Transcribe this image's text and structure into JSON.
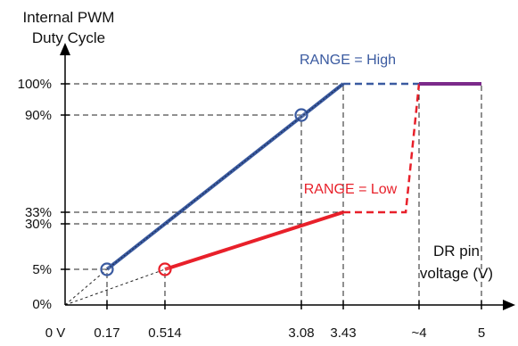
{
  "chart_data": {
    "type": "line",
    "ylabel_lines": [
      "Internal PWM",
      "Duty Cycle"
    ],
    "xlabel_lines": [
      "DR pin",
      "voltage (V)"
    ],
    "x_ticks": [
      {
        "value": 0,
        "label": "0 V"
      },
      {
        "value": 0.17,
        "label": "0.17"
      },
      {
        "value": 0.514,
        "label": "0.514"
      },
      {
        "value": 3.08,
        "label": "3.08"
      },
      {
        "value": 3.43,
        "label": "3.43"
      },
      {
        "value": 4,
        "label": "~4"
      },
      {
        "value": 5,
        "label": "5"
      }
    ],
    "y_ticks": [
      {
        "value": 0,
        "label": "0%"
      },
      {
        "value": 5,
        "label": "5%"
      },
      {
        "value": 30,
        "label": "30%"
      },
      {
        "value": 33,
        "label": "33%"
      },
      {
        "value": 90,
        "label": "90%"
      },
      {
        "value": 100,
        "label": "100%"
      }
    ],
    "series": [
      {
        "name": "RANGE = High",
        "color": "#3a5aa0",
        "segments": [
          {
            "style": "solid",
            "points": [
              [
                0.17,
                5
              ],
              [
                3.43,
                100
              ]
            ]
          },
          {
            "style": "dashed",
            "points": [
              [
                3.43,
                100
              ],
              [
                4,
                100
              ]
            ]
          }
        ],
        "markers": [
          [
            0.17,
            5
          ],
          [
            3.08,
            90
          ]
        ]
      },
      {
        "name": "RANGE = Low",
        "color": "#e8202a",
        "segments": [
          {
            "style": "solid",
            "points": [
              [
                0.514,
                5
              ],
              [
                3.43,
                33
              ]
            ]
          },
          {
            "style": "dashed",
            "points": [
              [
                3.43,
                33
              ],
              [
                3.9,
                33
              ],
              [
                4,
                100
              ]
            ]
          }
        ],
        "markers": [
          [
            0.514,
            5
          ]
        ]
      },
      {
        "name": "",
        "color": "#7b2a8a",
        "segments": [
          {
            "style": "solid",
            "points": [
              [
                4,
                100
              ],
              [
                5,
                100
              ]
            ]
          }
        ],
        "markers": []
      }
    ],
    "reference_lines": {
      "origin_rays": [
        [
          0.17,
          5
        ],
        [
          0.514,
          5
        ]
      ],
      "horizontal": [
        {
          "y": 100,
          "x_end": 3.43
        },
        {
          "y": 90,
          "x_end": 3.08
        },
        {
          "y": 33,
          "x_end": 3.43
        },
        {
          "y": 30,
          "x_end": 3.08
        },
        {
          "y": 5,
          "x_end": 0.17
        }
      ],
      "vertical": [
        {
          "x": 0.17,
          "y_end": 5
        },
        {
          "x": 0.514,
          "y_end": 5
        },
        {
          "x": 3.08,
          "y_end": 90
        },
        {
          "x": 3.43,
          "y_end": 100
        },
        {
          "x": 4,
          "y_end": 100
        },
        {
          "x": 5,
          "y_end": 100
        }
      ]
    },
    "grid": false
  }
}
